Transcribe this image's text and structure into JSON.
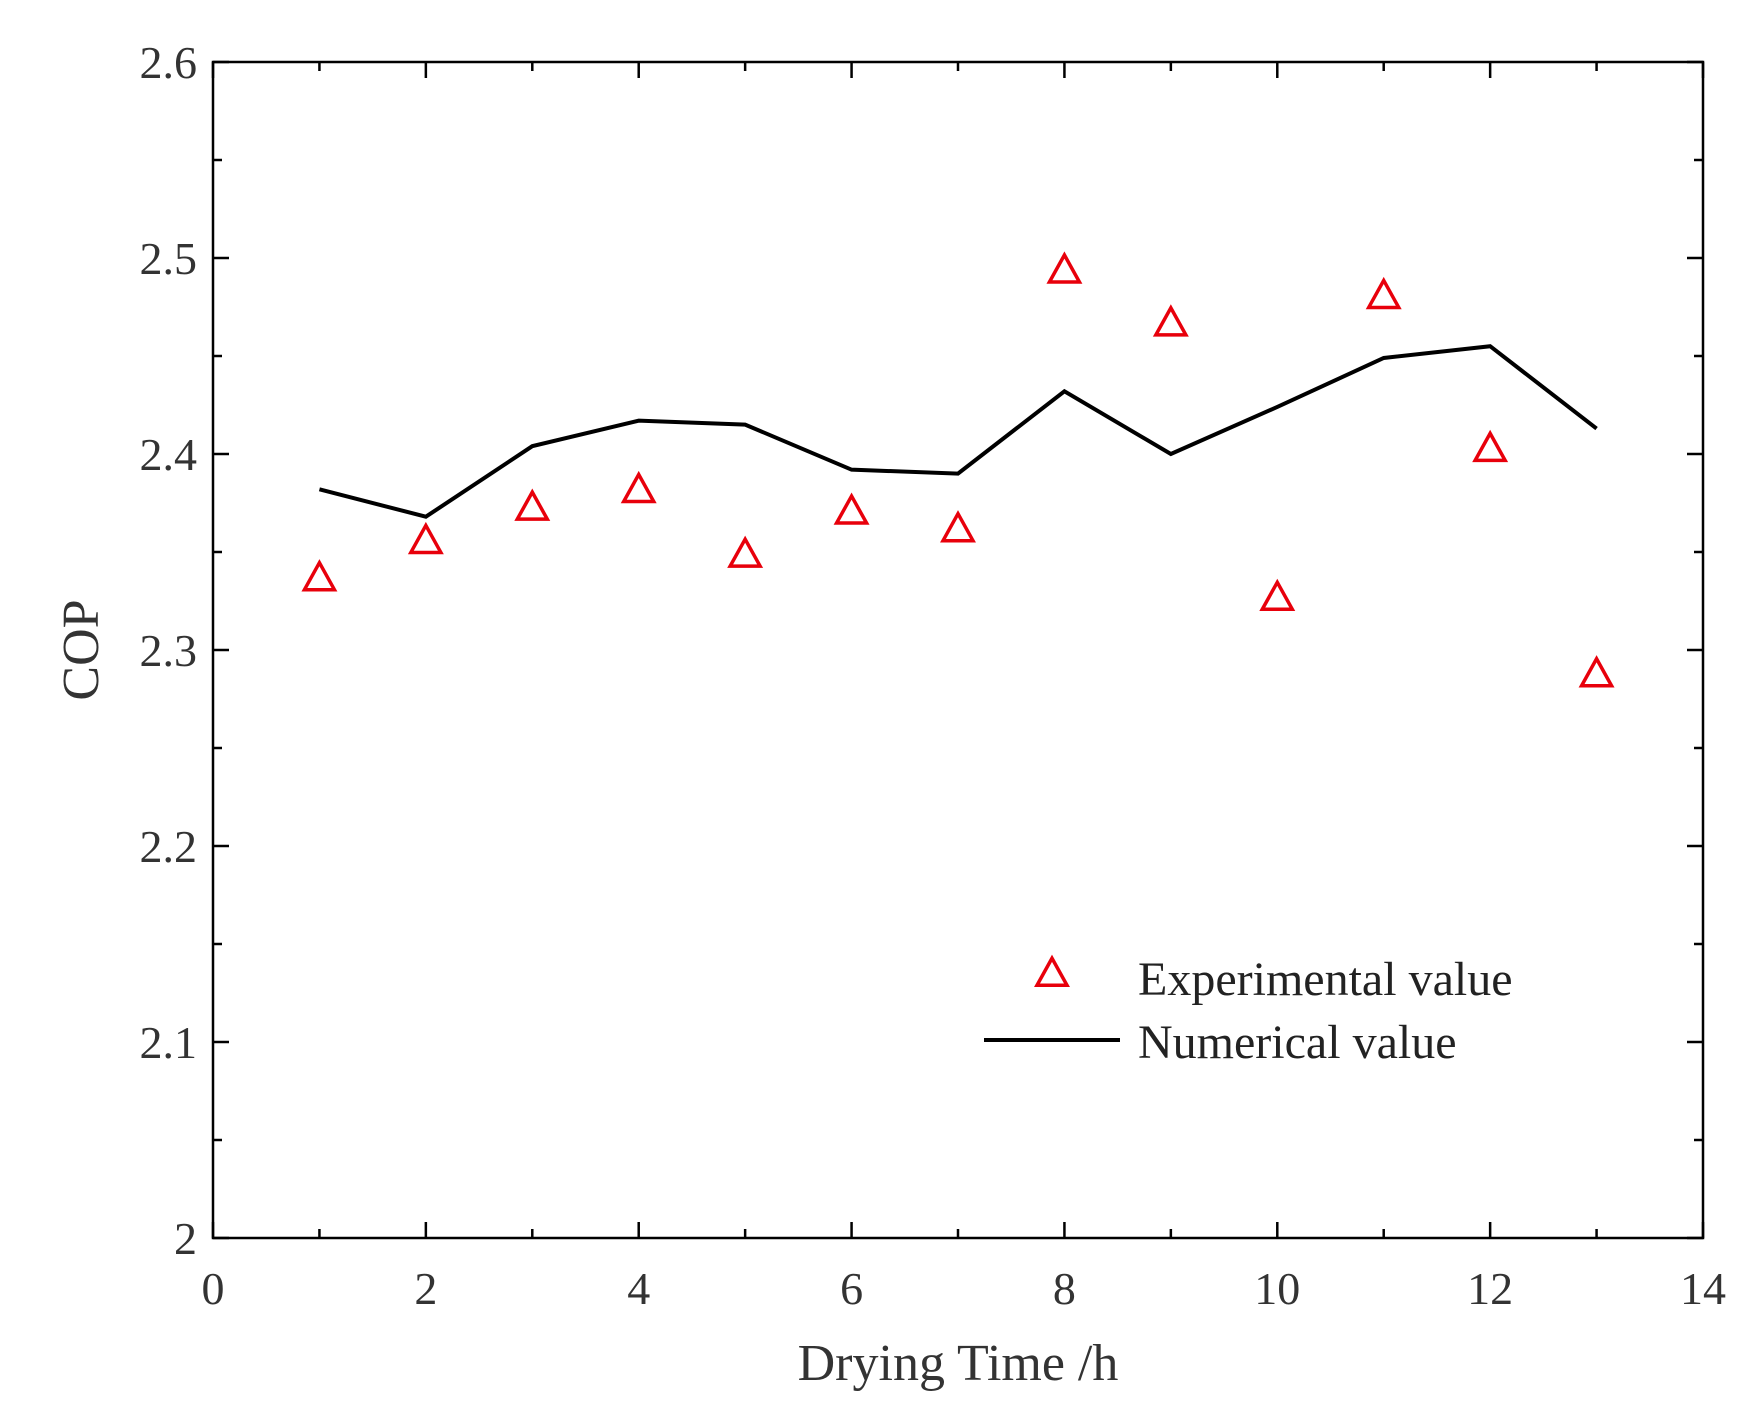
{
  "chart_data": {
    "type": "scatter",
    "title": "",
    "xlabel": "Drying Time /h",
    "ylabel": "COP",
    "xlim": [
      0,
      14
    ],
    "ylim": [
      2,
      2.6
    ],
    "xticks": [
      0,
      2,
      4,
      6,
      8,
      10,
      12,
      14
    ],
    "yticks": [
      2,
      2.1,
      2.2,
      2.3,
      2.4,
      2.5,
      2.6
    ],
    "xtick_labels": [
      "0",
      "2",
      "4",
      "6",
      "8",
      "10",
      "12",
      "14"
    ],
    "ytick_labels": [
      "2",
      "2.1",
      "2.2",
      "2.3",
      "2.4",
      "2.5",
      "2.6"
    ],
    "grid": false,
    "legend_position": "bottom-right",
    "series": [
      {
        "name": "Experimental value",
        "kind": "scatter",
        "marker": "triangle-open",
        "color": "#e8000b",
        "x": [
          1,
          2,
          3,
          4,
          5,
          6,
          7,
          8,
          9,
          10,
          11,
          12,
          13
        ],
        "y": [
          2.336,
          2.355,
          2.372,
          2.381,
          2.348,
          2.37,
          2.361,
          2.493,
          2.466,
          2.326,
          2.48,
          2.402,
          2.287
        ]
      },
      {
        "name": "Numerical value",
        "kind": "line",
        "color": "#000000",
        "x": [
          1,
          2,
          3,
          4,
          5,
          6,
          7,
          8,
          9,
          10,
          11,
          12,
          13
        ],
        "y": [
          2.382,
          2.368,
          2.404,
          2.417,
          2.415,
          2.392,
          2.39,
          2.432,
          2.4,
          2.424,
          2.449,
          2.455,
          2.413
        ]
      }
    ]
  }
}
